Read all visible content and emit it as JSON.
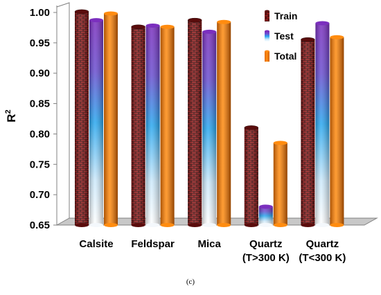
{
  "chart_data": {
    "type": "bar",
    "style": "3d-cylinder",
    "categories": [
      [
        "Calsite"
      ],
      [
        "Feldspar"
      ],
      [
        "Mica"
      ],
      [
        "Quartz",
        "(T>300 K)"
      ],
      [
        "Quartz",
        "(T<300 K)"
      ]
    ],
    "series": [
      {
        "name": "Train",
        "values": [
          0.999,
          0.974,
          0.985,
          0.808,
          0.953
        ],
        "fill": "brick",
        "color": "#8b1a1a"
      },
      {
        "name": "Test",
        "values": [
          0.985,
          0.976,
          0.966,
          0.678,
          0.98
        ],
        "fill": "gradient",
        "color_top": "#7b2fbe",
        "color_mid": "#2aa8f0",
        "color_bottom": "#ffffff"
      },
      {
        "name": "Total",
        "values": [
          0.996,
          0.974,
          0.982,
          0.783,
          0.957
        ],
        "fill": "solid",
        "color": "#f07a00"
      }
    ],
    "ylabel": "R",
    "ylabel_sup": "2",
    "ylim": [
      0.65,
      1.0
    ],
    "yticks": [
      "1.00",
      "0.95",
      "0.90",
      "0.85",
      "0.80",
      "0.75",
      "0.70",
      "0.65"
    ],
    "legend_position": "top-right",
    "grid": false,
    "caption": "(c)"
  }
}
